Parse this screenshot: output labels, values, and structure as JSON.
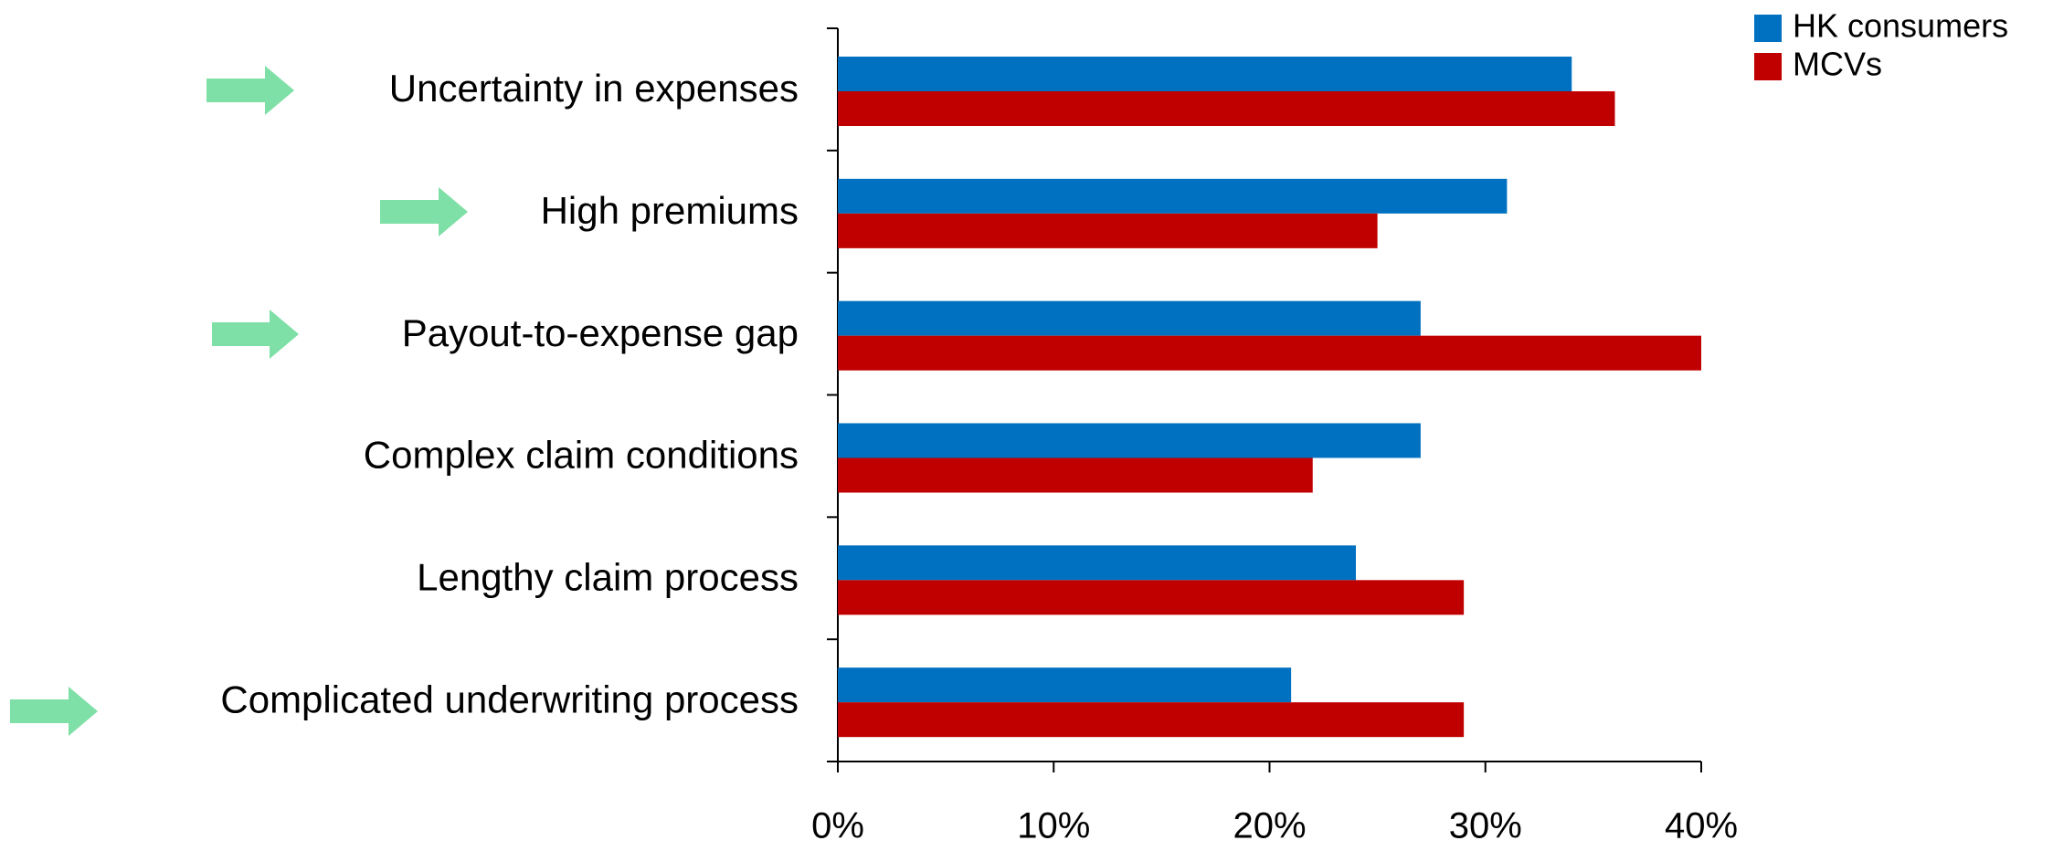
{
  "chart_data": {
    "type": "bar",
    "orientation": "horizontal",
    "categories": [
      "Uncertainty in expenses",
      "High premiums",
      "Payout-to-expense gap",
      "Complex claim conditions",
      "Lengthy claim process",
      "Complicated underwriting process"
    ],
    "series": [
      {
        "name": "HK consumers",
        "color": "#0070c0",
        "values": [
          34,
          31,
          27,
          27,
          24,
          21
        ]
      },
      {
        "name": "MCVs",
        "color": "#c00000",
        "values": [
          36,
          25,
          40,
          22,
          29,
          29
        ]
      }
    ],
    "xlim": [
      0,
      40
    ],
    "xticks": [
      {
        "value": 0,
        "label": "0%"
      },
      {
        "value": 10,
        "label": "10%"
      },
      {
        "value": 20,
        "label": "20%"
      },
      {
        "value": 30,
        "label": "30%"
      },
      {
        "value": 40,
        "label": "40%"
      }
    ],
    "legend": "top-right"
  }
}
